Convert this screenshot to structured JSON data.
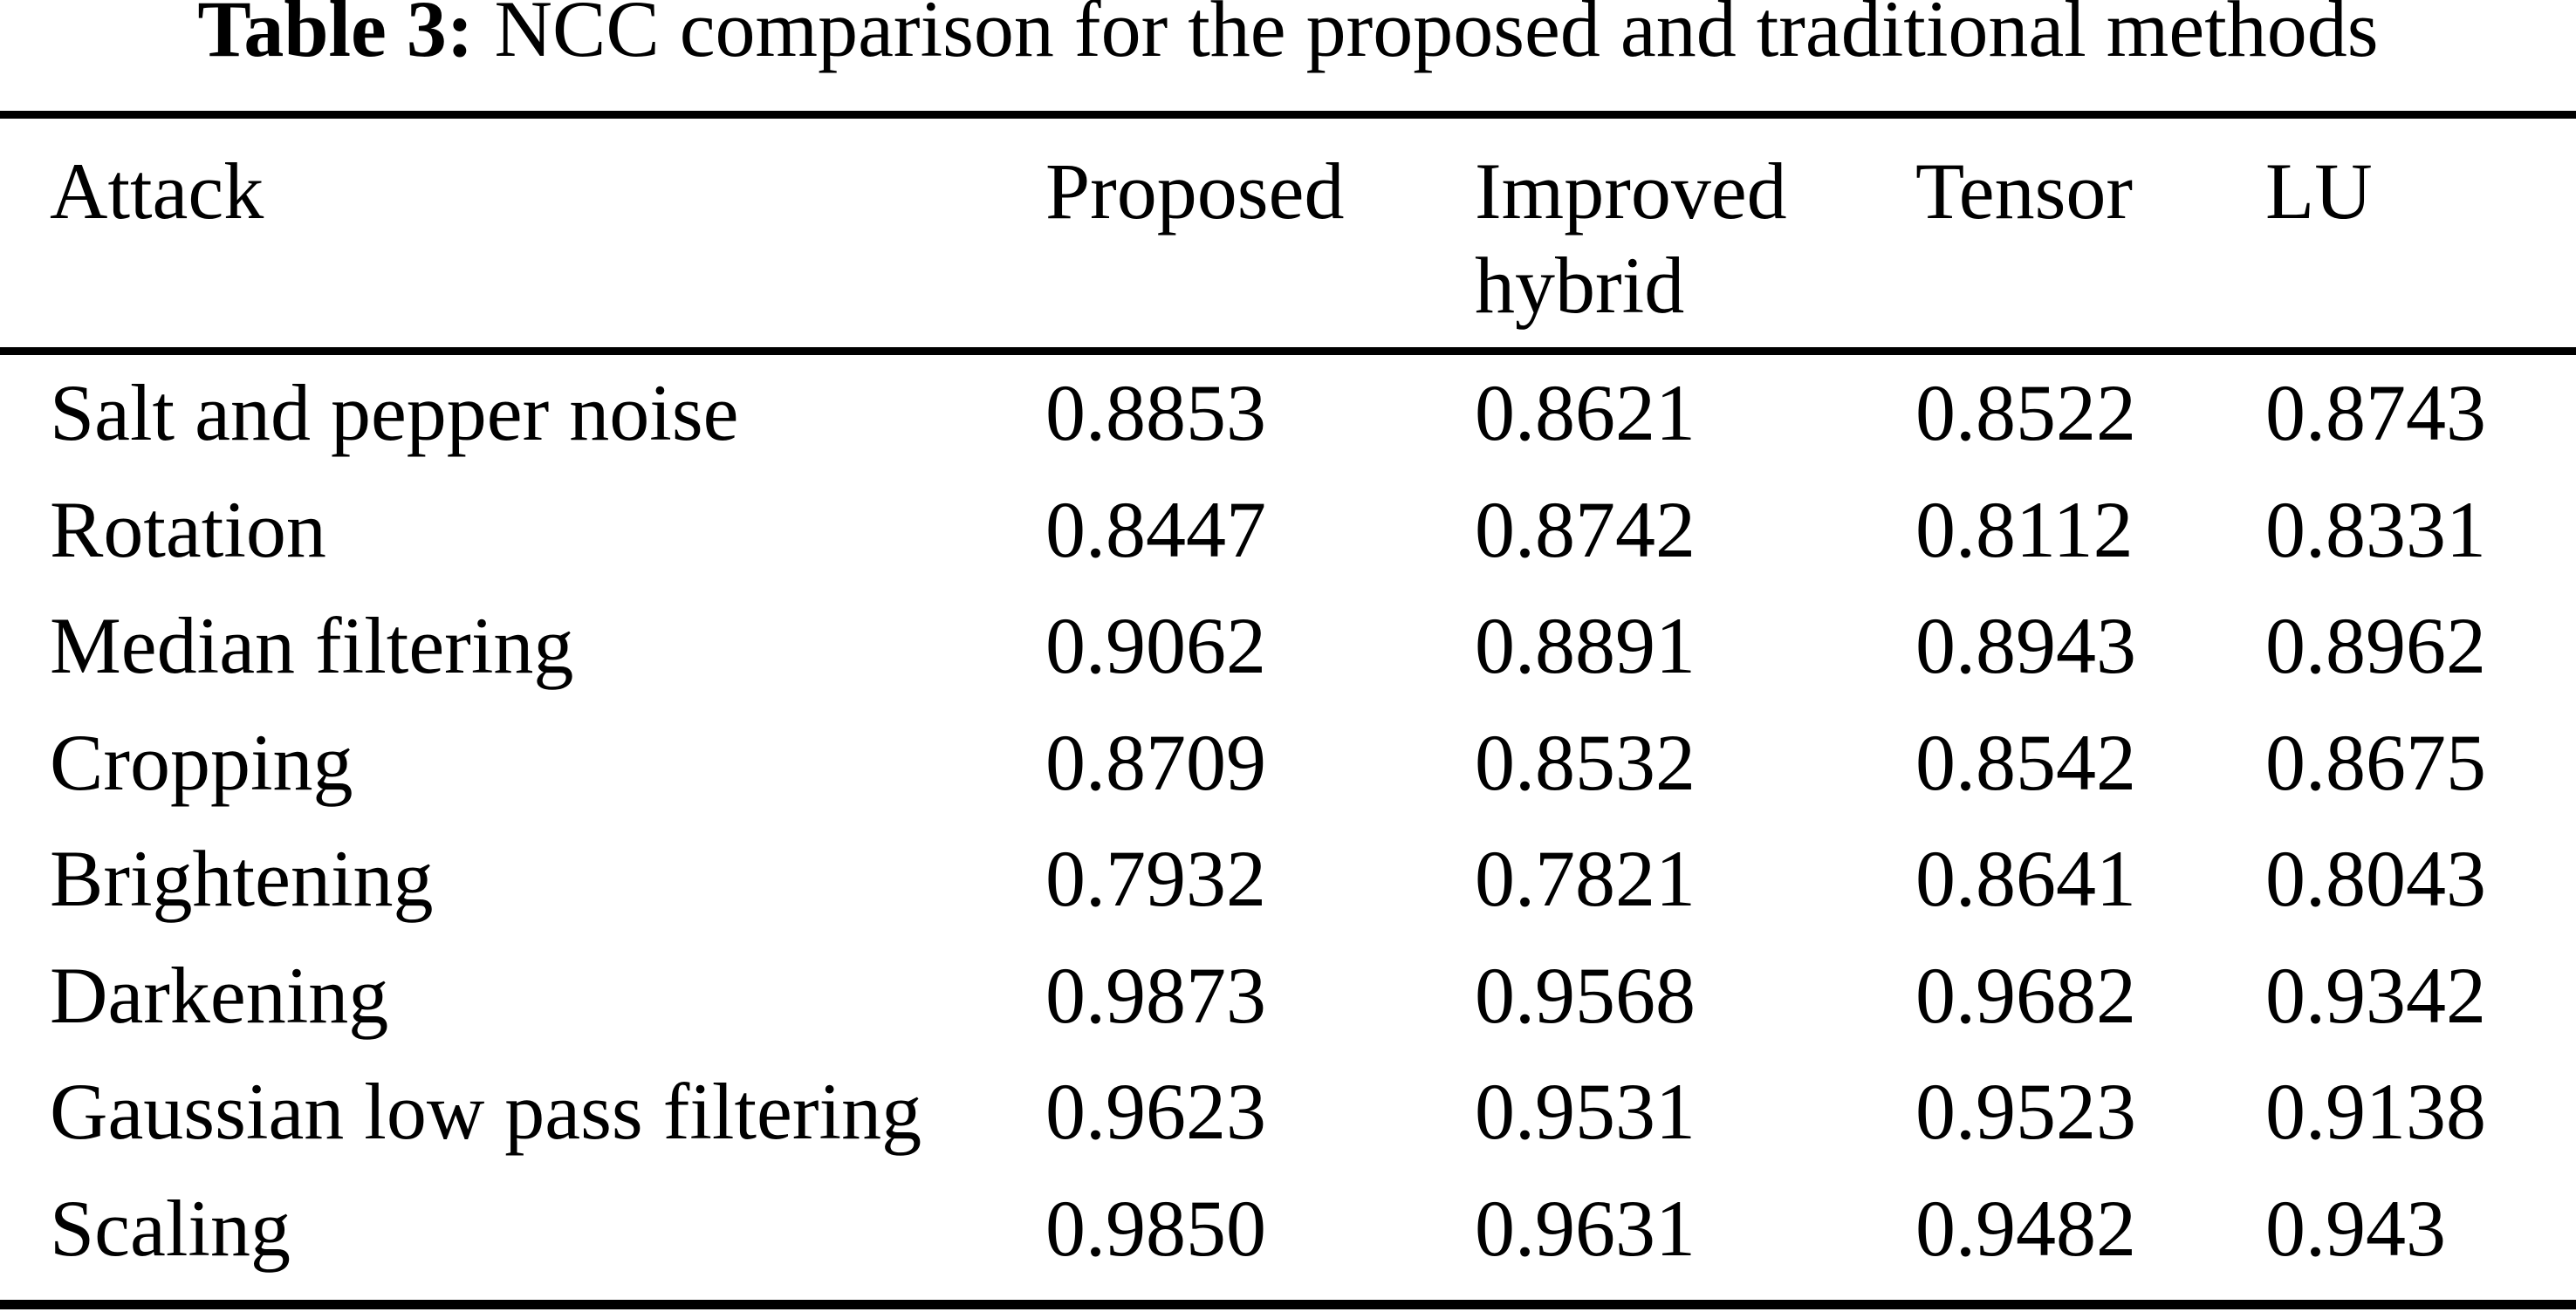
{
  "title": {
    "label": "Table 3:",
    "text": "NCC comparison for the proposed and traditional methods"
  },
  "table": {
    "header": {
      "attack": "Attack",
      "proposed": "Proposed",
      "improved_hybrid": "Improved hybrid",
      "tensor": "Tensor",
      "lu": "LU"
    },
    "rows": [
      {
        "attack": "Salt and pepper noise",
        "proposed": "0.8853",
        "improved_hybrid": "0.8621",
        "tensor": "0.8522",
        "lu": "0.8743"
      },
      {
        "attack": "Rotation",
        "proposed": "0.8447",
        "improved_hybrid": "0.8742",
        "tensor": "0.8112",
        "lu": "0.8331"
      },
      {
        "attack": "Median filtering",
        "proposed": "0.9062",
        "improved_hybrid": "0.8891",
        "tensor": "0.8943",
        "lu": "0.8962"
      },
      {
        "attack": "Cropping",
        "proposed": "0.8709",
        "improved_hybrid": "0.8532",
        "tensor": "0.8542",
        "lu": "0.8675"
      },
      {
        "attack": "Brightening",
        "proposed": "0.7932",
        "improved_hybrid": "0.7821",
        "tensor": "0.8641",
        "lu": "0.8043"
      },
      {
        "attack": "Darkening",
        "proposed": "0.9873",
        "improved_hybrid": "0.9568",
        "tensor": "0.9682",
        "lu": "0.9342"
      },
      {
        "attack": "Gaussian low pass filtering",
        "proposed": "0.9623",
        "improved_hybrid": "0.9531",
        "tensor": "0.9523",
        "lu": "0.9138"
      },
      {
        "attack": "Scaling",
        "proposed": "0.9850",
        "improved_hybrid": "0.9631",
        "tensor": "0.9482",
        "lu": "0.943"
      }
    ]
  }
}
